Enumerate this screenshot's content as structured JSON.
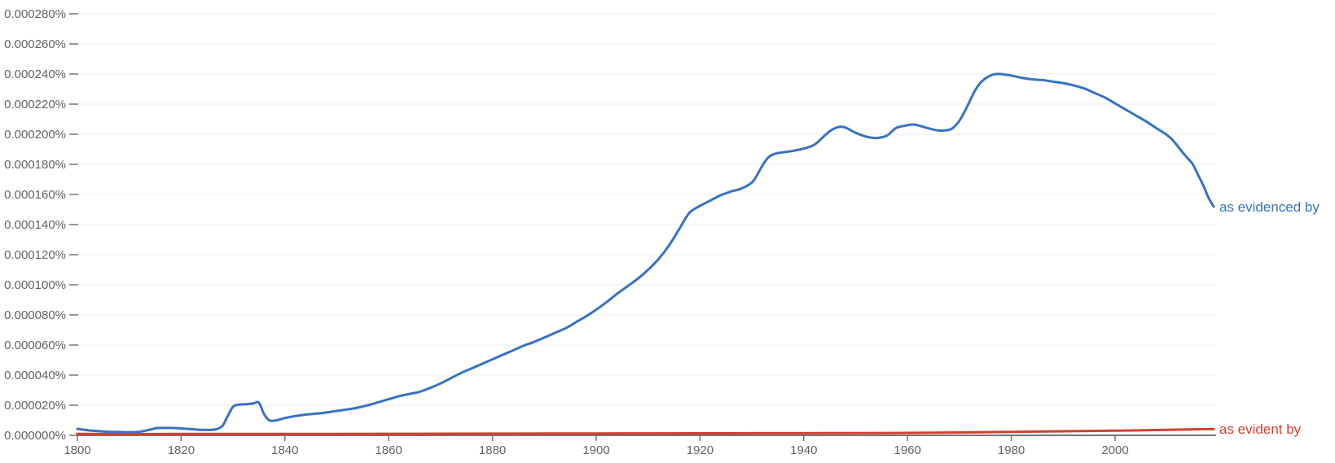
{
  "chart_data": {
    "type": "line",
    "title": "",
    "unit": "value unit = 1e-6 percent of corpus (Google Ngram relative frequency)",
    "x_range": [
      1800,
      2019
    ],
    "y_range_units": [
      0,
      280
    ],
    "y_range_percent": [
      "0.000000%",
      "0.000280%"
    ],
    "grid": "horizontal-only",
    "legend_position": "inline-right-of-line-end",
    "x_axis": {
      "tick_labels": [
        "1800",
        "1820",
        "1840",
        "1860",
        "1880",
        "1900",
        "1920",
        "1940",
        "1960",
        "1980",
        "2000"
      ]
    },
    "y_axis": {
      "tick_labels": [
        "0.000000%",
        "0.000020%",
        "0.000040%",
        "0.000060%",
        "0.000080%",
        "0.000100%",
        "0.000120%",
        "0.000140%",
        "0.000160%",
        "0.000180%",
        "0.000200%",
        "0.000220%",
        "0.000240%",
        "0.000260%",
        "0.000280%"
      ],
      "tick_step_units": 20
    },
    "colors": {
      "series1": "#3672c6",
      "series2": "#d23f31",
      "gridline": "#eeeeee",
      "axis_line": "#757575",
      "tick_mark": "#757575",
      "tick_text": "#5f6368"
    },
    "series": [
      {
        "name": "as evidenced by",
        "color": "#3672c6",
        "points": [
          [
            1800,
            4.3
          ],
          [
            1802,
            3.4
          ],
          [
            1804,
            2.8
          ],
          [
            1806,
            2.4
          ],
          [
            1808,
            2.2
          ],
          [
            1810,
            2.1
          ],
          [
            1812,
            2.4
          ],
          [
            1814,
            3.8
          ],
          [
            1815,
            4.6
          ],
          [
            1816,
            4.9
          ],
          [
            1818,
            4.9
          ],
          [
            1820,
            4.6
          ],
          [
            1822,
            4.1
          ],
          [
            1824,
            3.6
          ],
          [
            1826,
            3.7
          ],
          [
            1827,
            4.3
          ],
          [
            1828,
            6.5
          ],
          [
            1829,
            13
          ],
          [
            1830,
            19
          ],
          [
            1831,
            20.3
          ],
          [
            1832,
            20.6
          ],
          [
            1833,
            20.8
          ],
          [
            1834,
            21.3
          ],
          [
            1835,
            21.7
          ],
          [
            1836,
            14
          ],
          [
            1837,
            10
          ],
          [
            1838,
            9.8
          ],
          [
            1839,
            10.5
          ],
          [
            1840,
            11.5
          ],
          [
            1842,
            12.8
          ],
          [
            1844,
            13.8
          ],
          [
            1846,
            14.4
          ],
          [
            1848,
            15.2
          ],
          [
            1850,
            16.2
          ],
          [
            1852,
            17.2
          ],
          [
            1854,
            18.4
          ],
          [
            1856,
            20
          ],
          [
            1858,
            22
          ],
          [
            1860,
            24
          ],
          [
            1862,
            26
          ],
          [
            1864,
            27.5
          ],
          [
            1866,
            29
          ],
          [
            1868,
            31.5
          ],
          [
            1870,
            34.5
          ],
          [
            1872,
            38
          ],
          [
            1874,
            41.5
          ],
          [
            1876,
            44.5
          ],
          [
            1878,
            47.5
          ],
          [
            1880,
            50.5
          ],
          [
            1882,
            53.5
          ],
          [
            1884,
            56.5
          ],
          [
            1886,
            59.5
          ],
          [
            1888,
            62
          ],
          [
            1890,
            65
          ],
          [
            1892,
            68
          ],
          [
            1894,
            71
          ],
          [
            1896,
            75
          ],
          [
            1898,
            79
          ],
          [
            1900,
            83.5
          ],
          [
            1902,
            88.5
          ],
          [
            1904,
            94
          ],
          [
            1906,
            99
          ],
          [
            1908,
            104
          ],
          [
            1910,
            110
          ],
          [
            1912,
            117
          ],
          [
            1914,
            126
          ],
          [
            1916,
            137
          ],
          [
            1917,
            143
          ],
          [
            1918,
            148
          ],
          [
            1919,
            150.5
          ],
          [
            1920,
            152.5
          ],
          [
            1922,
            156
          ],
          [
            1924,
            159.5
          ],
          [
            1926,
            162
          ],
          [
            1928,
            164
          ],
          [
            1930,
            168
          ],
          [
            1931,
            173
          ],
          [
            1932,
            179
          ],
          [
            1933,
            184
          ],
          [
            1934,
            186.5
          ],
          [
            1935,
            187.5
          ],
          [
            1936,
            188
          ],
          [
            1938,
            189
          ],
          [
            1940,
            190.5
          ],
          [
            1942,
            193
          ],
          [
            1944,
            199
          ],
          [
            1945,
            202
          ],
          [
            1946,
            204
          ],
          [
            1947,
            205
          ],
          [
            1948,
            204.5
          ],
          [
            1950,
            201
          ],
          [
            1952,
            198.5
          ],
          [
            1954,
            197.5
          ],
          [
            1956,
            199
          ],
          [
            1957,
            202
          ],
          [
            1958,
            204.5
          ],
          [
            1960,
            206
          ],
          [
            1961,
            206.5
          ],
          [
            1962,
            206
          ],
          [
            1964,
            204
          ],
          [
            1966,
            202.5
          ],
          [
            1968,
            203
          ],
          [
            1969,
            205
          ],
          [
            1970,
            209
          ],
          [
            1971,
            215
          ],
          [
            1972,
            222
          ],
          [
            1973,
            229
          ],
          [
            1974,
            234
          ],
          [
            1975,
            237
          ],
          [
            1976,
            239
          ],
          [
            1977,
            240
          ],
          [
            1978,
            240
          ],
          [
            1979,
            239.5
          ],
          [
            1980,
            239
          ],
          [
            1982,
            237.5
          ],
          [
            1984,
            236.5
          ],
          [
            1986,
            236
          ],
          [
            1988,
            235
          ],
          [
            1990,
            234
          ],
          [
            1992,
            232.5
          ],
          [
            1994,
            230.5
          ],
          [
            1996,
            227.5
          ],
          [
            1998,
            224.5
          ],
          [
            2000,
            220.5
          ],
          [
            2002,
            216.5
          ],
          [
            2004,
            212.5
          ],
          [
            2006,
            208.5
          ],
          [
            2008,
            204
          ],
          [
            2010,
            199.5
          ],
          [
            2011,
            196.5
          ],
          [
            2012,
            192.5
          ],
          [
            2013,
            188
          ],
          [
            2014,
            184
          ],
          [
            2015,
            180
          ],
          [
            2016,
            173
          ],
          [
            2017,
            166
          ],
          [
            2018,
            158
          ],
          [
            2019,
            152
          ]
        ]
      },
      {
        "name": "as evident by",
        "color": "#d23f31",
        "points": [
          [
            1800,
            1.0
          ],
          [
            1810,
            0.8
          ],
          [
            1820,
            0.9
          ],
          [
            1830,
            1.0
          ],
          [
            1850,
            1.0
          ],
          [
            1870,
            1.1
          ],
          [
            1890,
            1.2
          ],
          [
            1910,
            1.3
          ],
          [
            1930,
            1.4
          ],
          [
            1950,
            1.5
          ],
          [
            1960,
            1.6
          ],
          [
            1970,
            1.9
          ],
          [
            1980,
            2.3
          ],
          [
            1990,
            2.7
          ],
          [
            2000,
            3.1
          ],
          [
            2010,
            3.6
          ],
          [
            2019,
            4.2
          ]
        ]
      }
    ]
  }
}
